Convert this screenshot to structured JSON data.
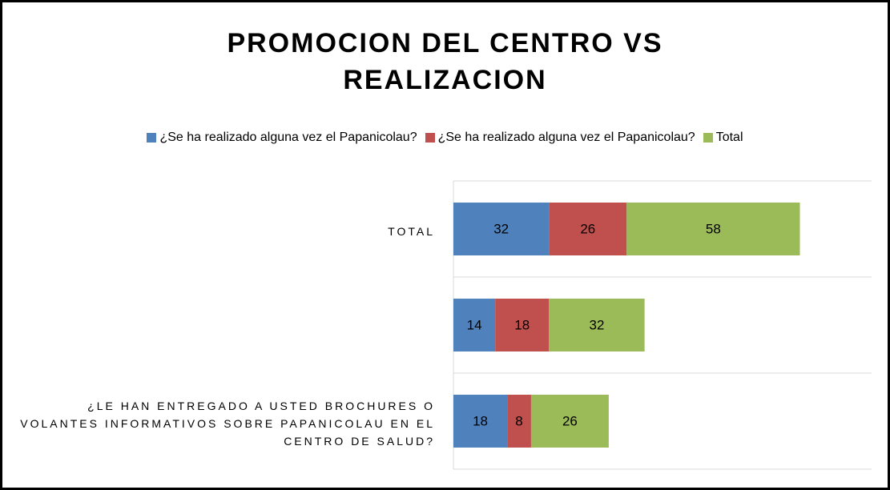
{
  "chart_data": {
    "type": "stacked_barh",
    "title": "PROMOCION DEL CENTRO VS REALIZACION",
    "categories": [
      "TOTAL",
      null,
      "¿LE HAN ENTREGADO A USTED BROCHURES O VOLANTES INFORMATIVOS SOBRE PAPANICOLAU EN EL CENTRO DE SALUD?"
    ],
    "series": [
      {
        "name": "¿Se ha realizado alguna vez el Papanicolau?",
        "color": "#4f81bd",
        "values": [
          32,
          14,
          18
        ]
      },
      {
        "name": "¿Se ha realizado alguna vez el Papanicolau?",
        "color": "#c0504d",
        "values": [
          26,
          18,
          8
        ]
      },
      {
        "name": "Total",
        "color": "#9bbb59",
        "values": [
          58,
          32,
          26
        ]
      }
    ],
    "xlim": [
      0,
      140
    ],
    "legend": "top",
    "grid": true
  }
}
